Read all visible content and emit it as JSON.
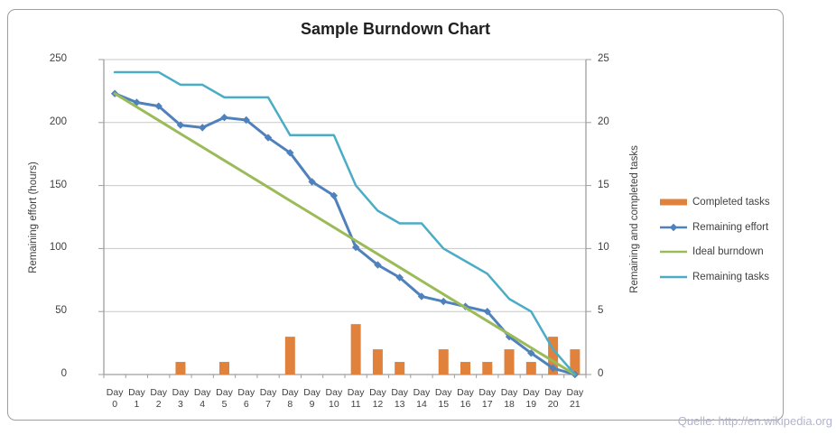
{
  "watermark": "Quelle: http://en.wikipedia.org",
  "chart_data": {
    "type": "combo",
    "title": "Sample Burndown Chart",
    "ylabel_left": "Remaining effort (hours)",
    "ylabel_right": "Remaining and  completed tasks",
    "ylim_left": [
      0,
      250
    ],
    "ytick_step_left": 50,
    "ylim_right": [
      0,
      25
    ],
    "ytick_step_right": 5,
    "grid": true,
    "grid_color": "#c9c9c9",
    "axis_color": "#9e9e9e",
    "legend_position": "right",
    "categories": [
      "Day 0",
      "Day 1",
      "Day 2",
      "Day 3",
      "Day 4",
      "Day 5",
      "Day 6",
      "Day 7",
      "Day 8",
      "Day 9",
      "Day 10",
      "Day 11",
      "Day 12",
      "Day 13",
      "Day 14",
      "Day 15",
      "Day 16",
      "Day 17",
      "Day 18",
      "Day 19",
      "Day 20",
      "Day 21"
    ],
    "series": [
      {
        "name": "Completed tasks",
        "type": "bar",
        "axis": "right",
        "color": "#e0813c",
        "values": [
          0,
          0,
          0,
          1,
          0,
          1,
          0,
          0,
          3,
          0,
          0,
          4,
          2,
          1,
          0,
          2,
          1,
          1,
          2,
          1,
          3,
          2
        ]
      },
      {
        "name": "Remaining effort",
        "type": "line",
        "marker": "diamond",
        "axis": "left",
        "color": "#4f81bd",
        "values": [
          223,
          216,
          213,
          198,
          196,
          204,
          202,
          188,
          176,
          153,
          142,
          101,
          87,
          77,
          62,
          58,
          54,
          50,
          30,
          17,
          5,
          0
        ]
      },
      {
        "name": "Ideal burndown",
        "type": "line",
        "axis": "left",
        "color": "#9bbb59",
        "values": [
          223,
          212.4,
          201.8,
          191.1,
          180.5,
          169.9,
          159.3,
          148.7,
          138,
          127.4,
          116.8,
          106.2,
          95.6,
          85,
          74.3,
          63.7,
          53.1,
          42.5,
          31.9,
          21.2,
          10.6,
          0
        ]
      },
      {
        "name": "Remaining tasks",
        "type": "line",
        "axis": "right",
        "color": "#4bacc6",
        "values": [
          24,
          24,
          24,
          23,
          23,
          22,
          22,
          22,
          19,
          19,
          19,
          15,
          13,
          12,
          12,
          10,
          9,
          8,
          6,
          5,
          2,
          0
        ]
      }
    ]
  }
}
